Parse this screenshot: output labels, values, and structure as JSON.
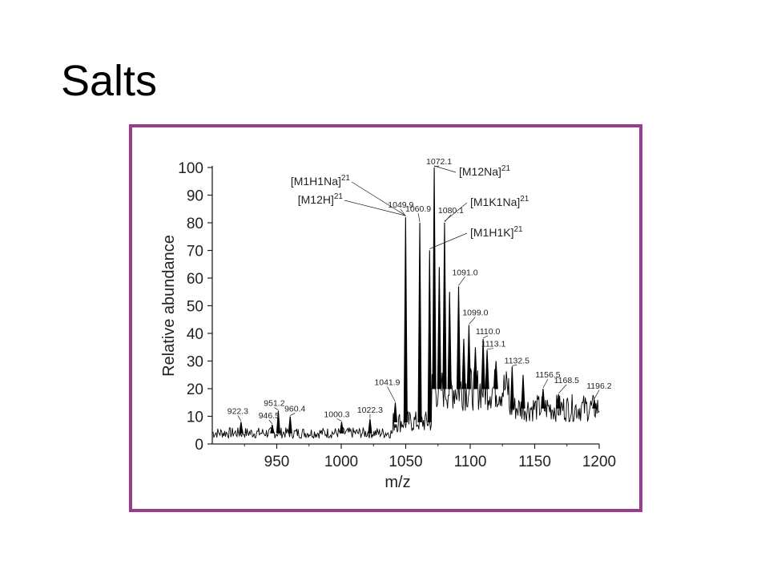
{
  "slide": {
    "title": "Salts",
    "frame_color": "#9b3a8e"
  },
  "chart_data": {
    "type": "line",
    "title": "",
    "xlabel": "m/z",
    "ylabel": "Relative abundance",
    "xlim": [
      900,
      1200
    ],
    "ylim": [
      0,
      100
    ],
    "xticks": [
      950,
      1000,
      1050,
      1100,
      1150,
      1200
    ],
    "yticks": [
      0,
      10,
      20,
      30,
      40,
      50,
      60,
      70,
      80,
      90,
      100
    ],
    "grid": false,
    "line_color": "#000000",
    "baseline": [
      {
        "from": 900,
        "to": 1040,
        "level": 4,
        "noise": 2
      },
      {
        "from": 1040,
        "to": 1070,
        "level": 8,
        "noise": 4
      },
      {
        "from": 1070,
        "to": 1130,
        "level": 20,
        "noise": 8
      },
      {
        "from": 1130,
        "to": 1200,
        "level": 13,
        "noise": 5
      }
    ],
    "peaks": [
      {
        "x": 922.3,
        "y": 8,
        "label": "922.3"
      },
      {
        "x": 946.5,
        "y": 7,
        "label": "946.5"
      },
      {
        "x": 951.2,
        "y": 12,
        "label": "951.2"
      },
      {
        "x": 960.4,
        "y": 10,
        "label": "960.4"
      },
      {
        "x": 1000.3,
        "y": 8,
        "label": "1000.3"
      },
      {
        "x": 1022.3,
        "y": 9,
        "label": "1022.3"
      },
      {
        "x": 1041.9,
        "y": 15,
        "label": "1041.9"
      },
      {
        "x": 1049.9,
        "y": 82,
        "label": "1049.9"
      },
      {
        "x": 1060.9,
        "y": 80,
        "label": "1060.9"
      },
      {
        "x": 1068.5,
        "y": 70,
        "label": ""
      },
      {
        "x": 1072.1,
        "y": 100,
        "label": "1072.1"
      },
      {
        "x": 1076.0,
        "y": 64,
        "label": ""
      },
      {
        "x": 1080.1,
        "y": 80,
        "label": "1080.1"
      },
      {
        "x": 1084.0,
        "y": 55,
        "label": ""
      },
      {
        "x": 1091.0,
        "y": 57,
        "label": "1091.0"
      },
      {
        "x": 1095.0,
        "y": 38,
        "label": ""
      },
      {
        "x": 1099.0,
        "y": 43,
        "label": "1099.0"
      },
      {
        "x": 1104.0,
        "y": 35,
        "label": ""
      },
      {
        "x": 1110.0,
        "y": 38,
        "label": "1110.0"
      },
      {
        "x": 1113.1,
        "y": 34,
        "label": "1113.1"
      },
      {
        "x": 1120.0,
        "y": 30,
        "label": ""
      },
      {
        "x": 1132.5,
        "y": 28,
        "label": "1132.5"
      },
      {
        "x": 1141.0,
        "y": 25,
        "label": ""
      },
      {
        "x": 1156.5,
        "y": 20,
        "label": "1156.5"
      },
      {
        "x": 1168.5,
        "y": 18,
        "label": "1168.5"
      },
      {
        "x": 1196.2,
        "y": 16,
        "label": "1196.2"
      }
    ],
    "annotations": [
      {
        "label": "[M1H1Na]",
        "sup": "21",
        "peak": 1049.9
      },
      {
        "label": "[M12H]",
        "sup": "21",
        "peak": 1049.9
      },
      {
        "label": "[M12Na]",
        "sup": "21",
        "peak": 1072.1
      },
      {
        "label": "[M1K1Na]",
        "sup": "21",
        "peak": 1080.1
      },
      {
        "label": "[M1H1K]",
        "sup": "21",
        "peak": 1068.5
      }
    ]
  }
}
